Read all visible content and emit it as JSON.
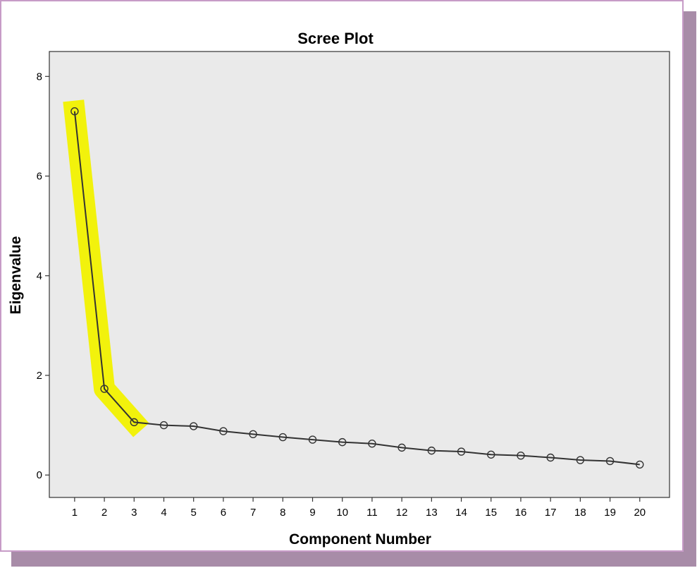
{
  "chart_data": {
    "type": "line",
    "title": "Scree Plot",
    "xlabel": "Component Number",
    "ylabel": "Eigenvalue",
    "x": [
      1,
      2,
      3,
      4,
      5,
      6,
      7,
      8,
      9,
      10,
      11,
      12,
      13,
      14,
      15,
      16,
      17,
      18,
      19,
      20
    ],
    "values": [
      7.3,
      1.73,
      1.06,
      1.0,
      0.98,
      0.88,
      0.82,
      0.76,
      0.71,
      0.66,
      0.63,
      0.55,
      0.49,
      0.47,
      0.41,
      0.39,
      0.35,
      0.3,
      0.28,
      0.21
    ],
    "x_ticks": [
      "1",
      "2",
      "3",
      "4",
      "5",
      "6",
      "7",
      "8",
      "9",
      "10",
      "11",
      "12",
      "13",
      "14",
      "15",
      "16",
      "17",
      "18",
      "19",
      "20"
    ],
    "y_ticks": [
      "0",
      "2",
      "4",
      "6",
      "8"
    ],
    "ylim": [
      -0.45,
      8.5
    ],
    "xlim": [
      0.15,
      21.0
    ],
    "highlight_range": [
      1,
      3
    ],
    "grid": false,
    "colors": {
      "plot_background": "#eaeaea",
      "line": "#333333",
      "highlight": "#f2f200",
      "frame_border": "#c79bc7",
      "frame_shadow": "#a88ca8"
    }
  }
}
